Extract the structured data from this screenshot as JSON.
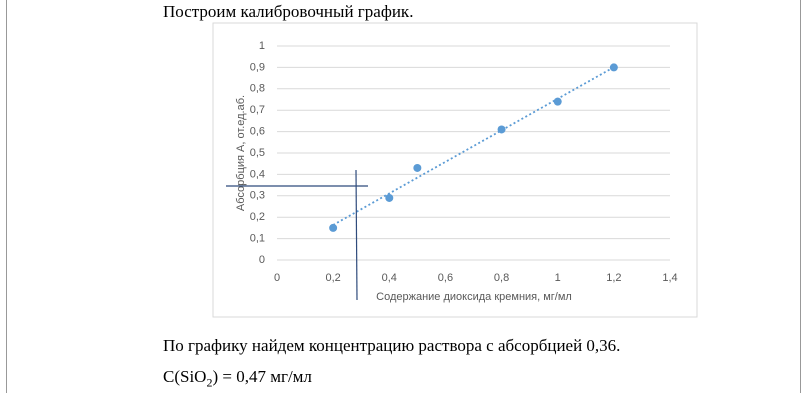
{
  "heading": "Построим калибровочный график.",
  "chart_data": {
    "type": "scatter",
    "trendline": "linear",
    "grid": true,
    "x_label": "Содержание диоксида кремния, мг/мл",
    "y_label": "Абсорбция А, от.ед.аб.",
    "series": [
      {
        "color": "#5b9bd5",
        "x": [
          0.2,
          0.4,
          0.5,
          0.8,
          1,
          1.2
        ],
        "values": [
          0.15,
          0.29,
          0.43,
          0.61,
          0.74,
          0.9
        ]
      }
    ],
    "xlim": [
      0,
      1.4
    ],
    "xticks": [
      0,
      {
        "value": 0.2,
        "label": "0,2"
      },
      {
        "value": 0.4,
        "label": "0,4"
      },
      {
        "value": 0.6,
        "label": "0,6"
      },
      {
        "value": 0.8,
        "label": "0,8"
      },
      1,
      {
        "value": 1.2,
        "label": "1,2"
      },
      {
        "value": 1.4,
        "label": "1,4"
      }
    ],
    "ylim": [
      0,
      1
    ],
    "yticks": [
      0,
      {
        "value": 0.1,
        "label": "0,1"
      },
      {
        "value": 0.2,
        "label": "0,2"
      },
      {
        "value": 0.3,
        "label": "0,3"
      },
      {
        "value": 0.4,
        "label": "0,4"
      },
      {
        "value": 0.5,
        "label": "0,5"
      },
      {
        "value": 0.6,
        "label": "0,6"
      },
      {
        "value": 0.7,
        "label": "0,7"
      },
      {
        "value": 0.8,
        "label": "0,8"
      },
      {
        "value": 0.9,
        "label": "0,9"
      },
      1
    ]
  },
  "paragraphs": [
    "По графику найдем концентрацию раствора с абсорбцией 0,36."
  ],
  "formula": {
    "prefix": "C(SiO",
    "subscript": "2",
    "suffix": ") = 0,47 мг/мл"
  }
}
